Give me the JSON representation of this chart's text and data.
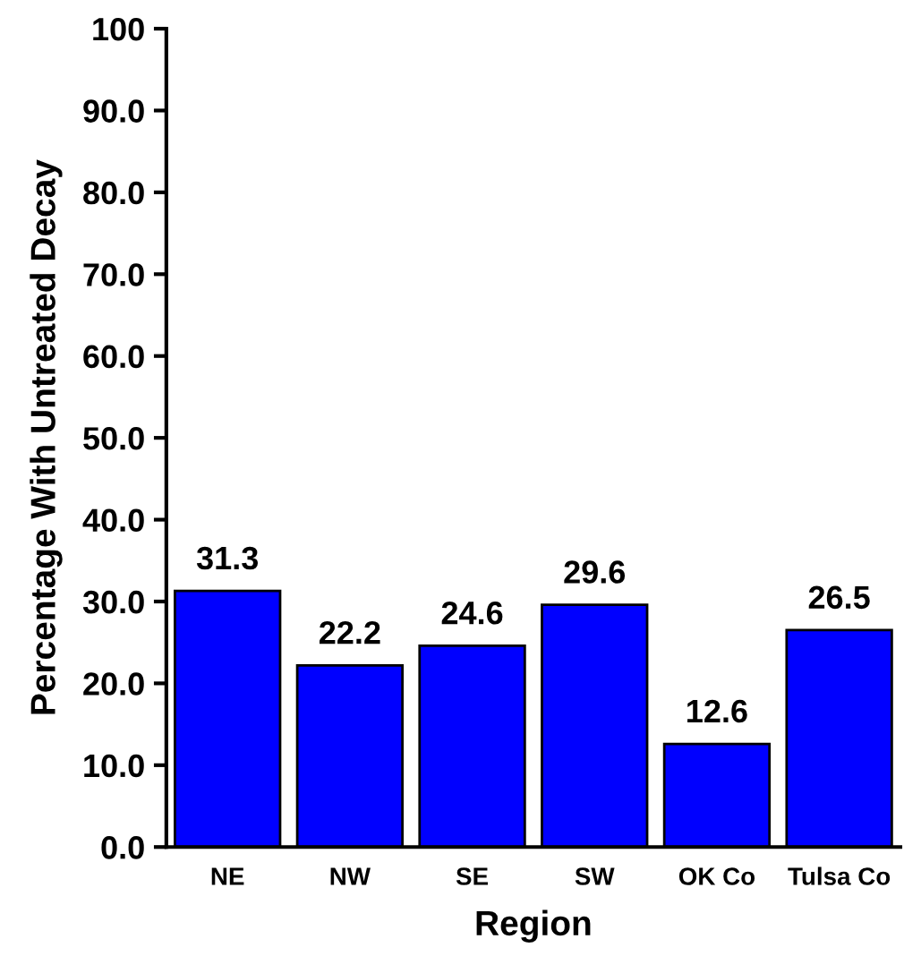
{
  "chart_data": {
    "type": "bar",
    "xlabel": "Region",
    "ylabel": "Percentage With Untreated Decay",
    "categories": [
      "NE",
      "NW",
      "SE",
      "SW",
      "OK Co",
      "Tulsa Co"
    ],
    "values": [
      31.3,
      22.2,
      24.6,
      29.6,
      12.6,
      26.5
    ],
    "color": "#0000ff",
    "data_labels": true,
    "grid": false,
    "legend": false,
    "ylim": [
      0,
      100
    ],
    "yticks": [
      {
        "value": 0,
        "label": "0.0"
      },
      {
        "value": 10,
        "label": "10.0"
      },
      {
        "value": 20,
        "label": "20.0"
      },
      {
        "value": 30,
        "label": "30.0"
      },
      {
        "value": 40,
        "label": "40.0"
      },
      {
        "value": 50,
        "label": "50.0"
      },
      {
        "value": 60,
        "label": "60.0"
      },
      {
        "value": 70,
        "label": "70.0"
      },
      {
        "value": 80,
        "label": "80.0"
      },
      {
        "value": 90,
        "label": "90.0"
      },
      100
    ]
  }
}
